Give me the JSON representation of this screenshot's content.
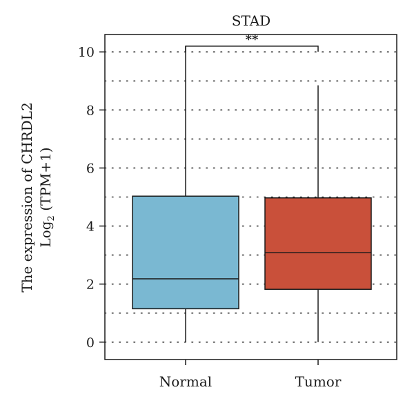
{
  "chart_data": {
    "type": "box",
    "title": "STAD",
    "ylabel_line1": "The expression of CHRDL2",
    "ylabel_line2_prefix": "Log",
    "ylabel_line2_sub": "2",
    "ylabel_line2_suffix": " (TPM+1)",
    "xlabel": "",
    "ylim": [
      -0.6,
      10.6
    ],
    "yticks": [
      0,
      2,
      4,
      6,
      8,
      10
    ],
    "grid": "dotted horizontal at every 1 unit",
    "categories": [
      "Normal",
      "Tumor"
    ],
    "boxes": [
      {
        "category": "Normal",
        "min": 0.0,
        "q1": 1.15,
        "median": 2.18,
        "q3": 5.03,
        "max": 10.2,
        "color": "#7ab8d2"
      },
      {
        "category": "Tumor",
        "min": 0.0,
        "q1": 1.82,
        "median": 3.08,
        "q3": 4.97,
        "max": 8.85,
        "color": "#c9503a"
      }
    ],
    "significance": {
      "label": "**",
      "y": 10.2
    }
  }
}
